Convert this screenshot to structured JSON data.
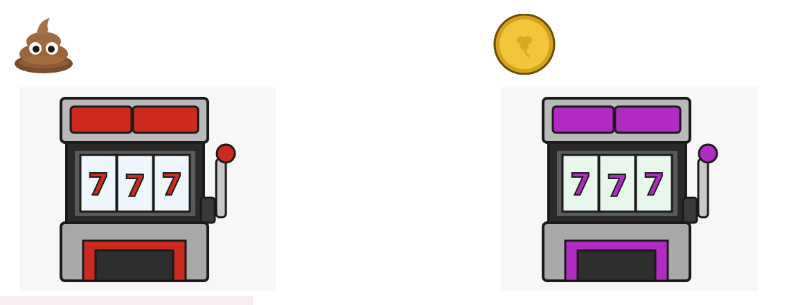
{
  "machines": [
    {
      "name": "left",
      "icon": "poop-emoji-icon",
      "accent": "#cc2a1e",
      "accent_dark": "#8e130b",
      "reel_bg": "#eef6fb",
      "reels": [
        "7",
        "7",
        "7"
      ]
    },
    {
      "name": "right",
      "icon": "gold-coin-clover-icon",
      "accent": "#b22ac4",
      "accent_dark": "#6e1680",
      "reel_bg": "#e9f6ec",
      "reels": [
        "7",
        "7",
        "7"
      ]
    }
  ]
}
